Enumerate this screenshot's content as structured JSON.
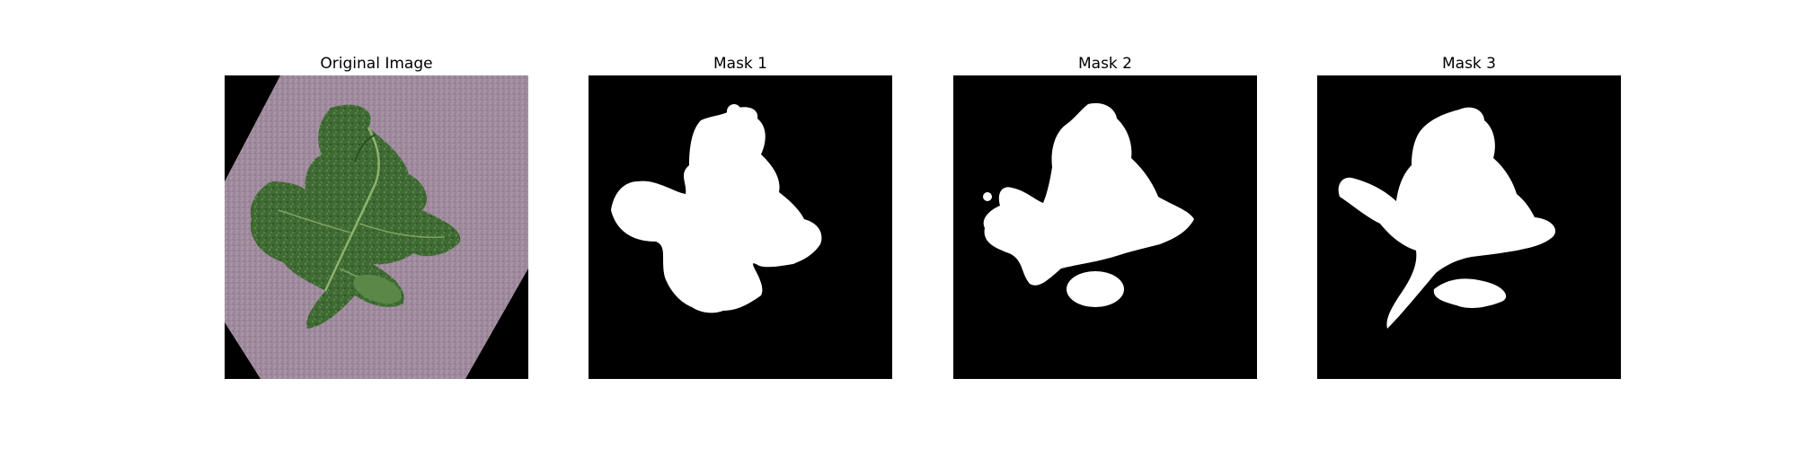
{
  "figure": {
    "panels": [
      {
        "title": "Original Image",
        "content": "photo of a green leaf on a purple-grey textured surface, rotated on black background"
      },
      {
        "title": "Mask 1",
        "content": "binary segmentation mask"
      },
      {
        "title": "Mask 2",
        "content": "binary segmentation mask"
      },
      {
        "title": "Mask 3",
        "content": "binary segmentation mask"
      }
    ]
  },
  "colors": {
    "background": "#000000",
    "mask": "#ffffff",
    "surface": "#9e8a9c",
    "leaf_dark": "#2f5a2a",
    "leaf_mid": "#4f7a3e",
    "leaf_light": "#6f9a55"
  }
}
